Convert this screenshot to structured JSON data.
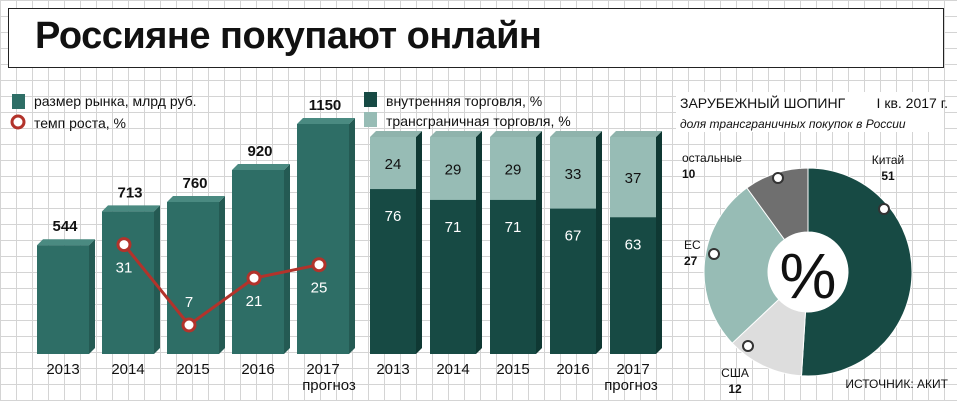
{
  "title": "Россияне покупают онлайн",
  "colors": {
    "market_bar": "#2e6e66",
    "growth_line": "#b2332b",
    "domestic": "#174a44",
    "crossborder": "#97bcb5",
    "china": "#174a44",
    "eu": "#97bcb5",
    "usa": "#dddddd",
    "other": "#6f6f6f"
  },
  "chart_data": [
    {
      "type": "bar",
      "categories": [
        "2013",
        "2014",
        "2015",
        "2016",
        "2017"
      ],
      "category_note": "прогноз",
      "series": [
        {
          "name": "размер рынка, млрд руб.",
          "values": [
            544,
            713,
            760,
            920,
            1150
          ]
        }
      ],
      "line_series": {
        "name": "темп роста, %",
        "values": [
          null,
          31,
          7,
          21,
          25
        ]
      }
    },
    {
      "type": "bar",
      "stacked": true,
      "percent": true,
      "categories": [
        "2013",
        "2014",
        "2015",
        "2016",
        "2017"
      ],
      "category_note": "прогноз",
      "series": [
        {
          "name": "внутренняя торговля, %",
          "values": [
            76,
            71,
            71,
            67,
            63
          ]
        },
        {
          "name": "трансграничная торговля, %",
          "values": [
            24,
            29,
            29,
            33,
            37
          ]
        }
      ]
    },
    {
      "type": "pie",
      "donut": true,
      "title": "ЗАРУБЕЖНЫЙ ШОПИНГ",
      "date": "I кв. 2017 г.",
      "subtitle": "доля трансграничных покупок в России",
      "center_label": "%",
      "slices": [
        {
          "label": "Китай",
          "value": 51
        },
        {
          "label": "США",
          "value": 12
        },
        {
          "label": "ЕС",
          "value": 27
        },
        {
          "label": "остальные",
          "value": 10
        }
      ]
    }
  ],
  "source": "ИСТОЧНИК: АКИТ"
}
